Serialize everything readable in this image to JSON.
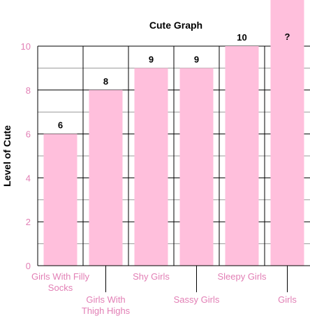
{
  "chart_data": {
    "type": "bar",
    "title": "Cute Graph",
    "xlabel": "",
    "ylabel": "Level of Cute",
    "ylim": [
      0,
      10
    ],
    "yticks": [
      0,
      2,
      4,
      6,
      8,
      10
    ],
    "grid": true,
    "categories": [
      [
        "Girls With Filly",
        "Socks"
      ],
      [
        "Girls With",
        "Thigh Highs"
      ],
      [
        "Shy Girls"
      ],
      [
        "Sassy Girls"
      ],
      [
        "Sleepy Girls"
      ],
      [
        "Girls"
      ]
    ],
    "values": [
      6,
      8,
      9,
      9,
      10,
      null
    ],
    "data_labels": [
      "6",
      "8",
      "9",
      "9",
      "10",
      "?"
    ],
    "colors": {
      "bar": "#ffbfdc",
      "axis_text": "#e27fb5",
      "grid": "#000000",
      "minor_grid": "#999999"
    }
  }
}
